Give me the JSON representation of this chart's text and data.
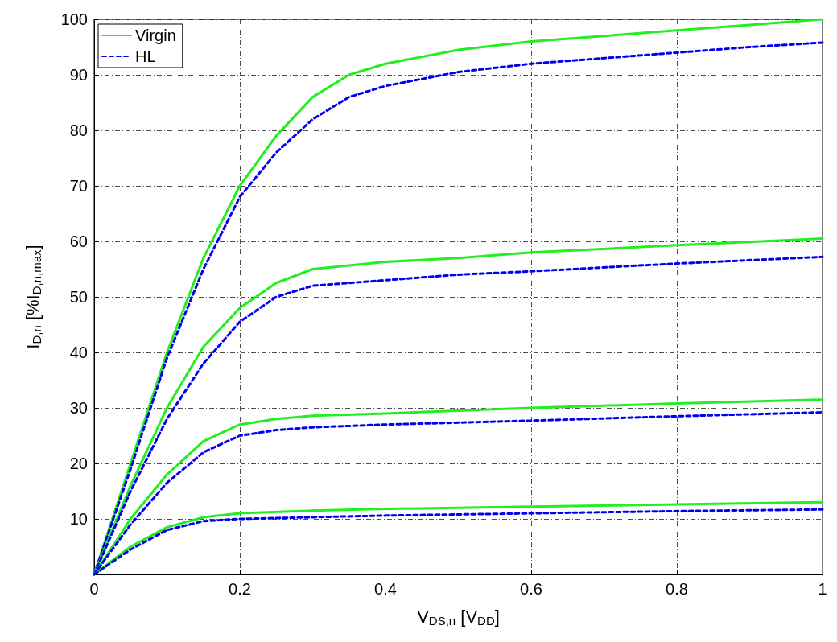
{
  "chart_data": {
    "type": "line",
    "xlabel": "V$_{DS,n}$ [V$_{DD}$]",
    "ylabel": "I$_{D,n}$ [%I$_{D,n,max}$]",
    "xlim": [
      0,
      1
    ],
    "xticks": [
      0,
      0.2,
      0.4,
      0.6,
      0.8,
      1
    ],
    "ylim": [
      0,
      100
    ],
    "yticks": [
      10,
      20,
      30,
      40,
      50,
      60,
      70,
      80,
      90,
      100
    ],
    "grid": true,
    "legend": "top left",
    "marker": "none",
    "series": [
      {
        "name": "Virgin",
        "color": "#22ee22",
        "line_style": "solid",
        "x": [
          0,
          0.05,
          0.1,
          0.15,
          0.2,
          0.25,
          0.3,
          0.35,
          0.4,
          0.5,
          0.6,
          0.7,
          0.8,
          0.9,
          1
        ],
        "values": [
          0,
          20,
          40,
          57,
          70,
          79,
          86,
          90,
          92,
          94.5,
          96,
          97,
          98,
          99,
          100
        ]
      },
      {
        "name": "HL",
        "color": "#0000ee",
        "line_style": "dashed",
        "x": [
          0,
          0.05,
          0.1,
          0.15,
          0.2,
          0.25,
          0.3,
          0.35,
          0.4,
          0.5,
          0.6,
          0.7,
          0.8,
          0.9,
          1
        ],
        "values": [
          0,
          19,
          39,
          55,
          68,
          76,
          82,
          86,
          88,
          90.5,
          92,
          93,
          94,
          95,
          95.8
        ]
      },
      {
        "color": "#22ee22",
        "line_style": "solid",
        "x": [
          0,
          0.05,
          0.1,
          0.15,
          0.2,
          0.25,
          0.3,
          0.4,
          0.5,
          0.6,
          0.8,
          1
        ],
        "values": [
          0,
          16,
          30,
          41,
          48,
          52.5,
          55,
          56.3,
          57,
          58,
          59.3,
          60.5
        ]
      },
      {
        "color": "#0000ee",
        "line_style": "dashed",
        "x": [
          0,
          0.05,
          0.1,
          0.15,
          0.2,
          0.25,
          0.3,
          0.4,
          0.5,
          0.6,
          0.8,
          1
        ],
        "values": [
          0,
          15,
          28,
          38,
          45.5,
          50,
          52,
          53,
          54,
          54.6,
          56,
          57.2
        ]
      },
      {
        "color": "#22ee22",
        "line_style": "solid",
        "x": [
          0,
          0.05,
          0.1,
          0.15,
          0.2,
          0.25,
          0.3,
          0.4,
          0.6,
          0.8,
          1
        ],
        "values": [
          0,
          10,
          18,
          24,
          27,
          28,
          28.6,
          29,
          30,
          30.8,
          31.5
        ]
      },
      {
        "color": "#0000ee",
        "line_style": "dashed",
        "x": [
          0,
          0.05,
          0.1,
          0.15,
          0.2,
          0.25,
          0.3,
          0.4,
          0.6,
          0.8,
          1
        ],
        "values": [
          0,
          9,
          16.5,
          22,
          25,
          26,
          26.5,
          27,
          27.7,
          28.5,
          29.2
        ]
      },
      {
        "color": "#22ee22",
        "line_style": "solid",
        "x": [
          0,
          0.05,
          0.1,
          0.15,
          0.2,
          0.3,
          0.4,
          0.6,
          0.8,
          1
        ],
        "values": [
          0,
          5,
          8.5,
          10.3,
          11,
          11.5,
          11.8,
          12.2,
          12.6,
          13
        ]
      },
      {
        "color": "#0000ee",
        "line_style": "dashed",
        "x": [
          0,
          0.05,
          0.1,
          0.15,
          0.2,
          0.3,
          0.4,
          0.6,
          0.8,
          1
        ],
        "values": [
          0,
          4.5,
          8,
          9.6,
          10,
          10.3,
          10.6,
          11,
          11.4,
          11.7
        ]
      }
    ]
  }
}
